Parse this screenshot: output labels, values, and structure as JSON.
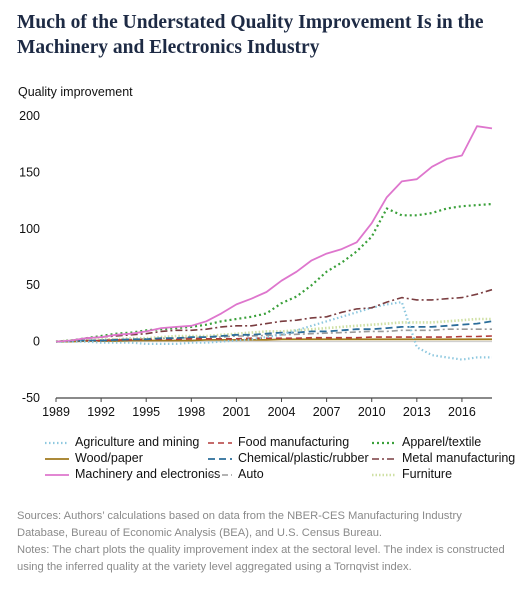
{
  "title_lines": [
    "Much of the Understated Quality Improvement Is in the",
    "Machinery and Electronics Industry"
  ],
  "chart_data": {
    "type": "line",
    "ylabel": "Quality improvement",
    "xlabel": "",
    "ylim": [
      -50,
      200
    ],
    "xlim": [
      1989,
      2018
    ],
    "y_ticks": [
      -50,
      0,
      50,
      100,
      150,
      200
    ],
    "x_ticks": [
      "1989",
      "1992",
      "1995",
      "1998",
      "2001",
      "2004",
      "2007",
      "2010",
      "2013",
      "2016"
    ],
    "x": [
      1989,
      1990,
      1991,
      1992,
      1993,
      1994,
      1995,
      1996,
      1997,
      1998,
      1999,
      2000,
      2001,
      2002,
      2003,
      2004,
      2005,
      2006,
      2007,
      2008,
      2009,
      2010,
      2011,
      2012,
      2013,
      2014,
      2015,
      2016,
      2017,
      2018
    ],
    "grid": false,
    "series": [
      {
        "name": "Agriculture and mining",
        "color": "#8ec8df",
        "dash": "1.5,2.5",
        "width": 2.2,
        "values": [
          0,
          0,
          0,
          -1,
          -1,
          -1,
          -2,
          -2,
          -2,
          -1,
          -1,
          0,
          1,
          2,
          4,
          6,
          10,
          14,
          18,
          22,
          26,
          30,
          33,
          35,
          -5,
          -12,
          -14,
          -16,
          -14,
          -14
        ]
      },
      {
        "name": "Food manufacturing",
        "color": "#b23a3a",
        "dash": "6,4",
        "width": 1.6,
        "values": [
          0,
          0.5,
          1,
          1,
          1.5,
          1.5,
          2,
          2,
          2,
          2.5,
          2.5,
          2.5,
          2.5,
          3,
          3,
          3,
          3,
          3.5,
          3.5,
          3.5,
          3.5,
          4,
          4,
          4,
          4,
          4,
          4,
          4.5,
          4.5,
          5
        ]
      },
      {
        "name": "Apparel/textile",
        "color": "#3aa03a",
        "dash": "2,3",
        "width": 2.2,
        "values": [
          0,
          1,
          3,
          5,
          7,
          8,
          10,
          11,
          12,
          13,
          15,
          18,
          20,
          22,
          25,
          34,
          40,
          50,
          62,
          70,
          80,
          93,
          118,
          112,
          112,
          114,
          118,
          120,
          121,
          122
        ]
      },
      {
        "name": "Wood/paper",
        "color": "#a07a1e",
        "dash": "",
        "width": 1.8,
        "values": [
          0,
          0,
          0.5,
          0.5,
          0.5,
          1,
          1,
          1,
          1,
          1,
          1.5,
          1.5,
          1.5,
          1.5,
          1.5,
          2,
          2,
          2,
          2,
          2,
          2,
          2,
          2,
          2,
          2,
          2,
          2,
          2,
          2,
          2
        ]
      },
      {
        "name": "Chemical/plastic/rubber",
        "color": "#2b6d9a",
        "dash": "7,4",
        "width": 1.8,
        "values": [
          0,
          0.5,
          1,
          1,
          1.5,
          2,
          2,
          3,
          3,
          4,
          4,
          5,
          6,
          6,
          7,
          8,
          8,
          9,
          9,
          10,
          11,
          11,
          12,
          13,
          13,
          13,
          14,
          15,
          16,
          18
        ]
      },
      {
        "name": "Metal manufacturing",
        "color": "#7a3d40",
        "dash": "7,3,2,3",
        "width": 1.6,
        "values": [
          0,
          1,
          3,
          4,
          5,
          6,
          7,
          9,
          10,
          10,
          11,
          13,
          14,
          14,
          16,
          18,
          19,
          21,
          22,
          26,
          29,
          30,
          35,
          39,
          37,
          37,
          38,
          39,
          42,
          46
        ]
      },
      {
        "name": "Machinery and electronics",
        "color": "#de76cd",
        "dash": "",
        "width": 1.8,
        "values": [
          0,
          1,
          3,
          4,
          6,
          7,
          9,
          12,
          13,
          14,
          18,
          25,
          33,
          38,
          44,
          54,
          62,
          72,
          78,
          82,
          88,
          105,
          128,
          142,
          144,
          155,
          162,
          165,
          191,
          189
        ]
      },
      {
        "name": "Auto",
        "color": "#9a9a9a",
        "dash": "6,3,2,3",
        "width": 1.6,
        "values": [
          0,
          0.5,
          1,
          1.5,
          2,
          2,
          2.5,
          3,
          3,
          3.5,
          4,
          4,
          5,
          5,
          5.5,
          6,
          6.5,
          7,
          7.5,
          8,
          8.5,
          9,
          9,
          10,
          10,
          10,
          11,
          11,
          11,
          11
        ]
      },
      {
        "name": "Furniture",
        "color": "#cfe0a4",
        "dash": "1.5,2",
        "width": 2.6,
        "values": [
          0,
          1,
          1,
          2,
          2,
          3,
          3,
          4,
          5,
          5,
          5,
          6,
          7,
          8,
          9,
          9,
          10,
          11,
          12,
          13,
          14,
          15,
          16,
          17,
          17,
          17,
          18,
          19,
          20,
          20
        ]
      }
    ]
  },
  "notes": {
    "sources": "Sources: Authors’ calculations based on data from the NBER-CES Manufacturing Industry Database, Bureau of Economic Analysis (BEA), and U.S. Census Bureau.",
    "notes_text": "Notes: The chart plots the quality improvement index at the sectoral level. The index is constructed using the inferred quality at the variety level aggregated using a Tornqvist index."
  }
}
